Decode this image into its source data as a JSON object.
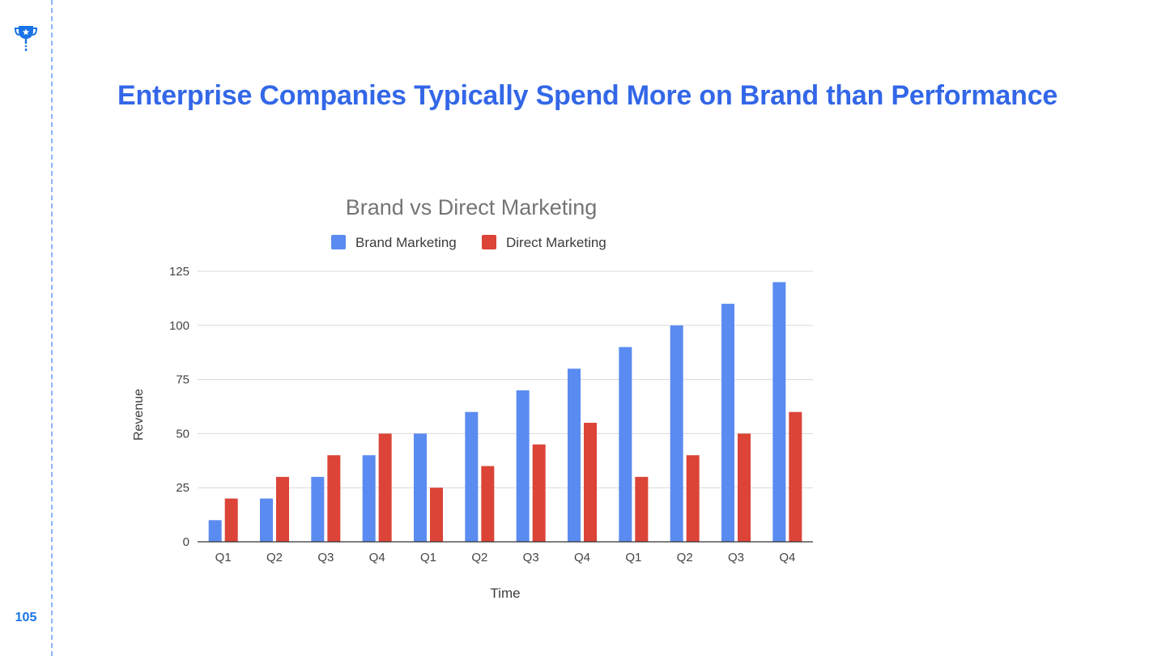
{
  "slide": {
    "title": "Enterprise Companies Typically Spend More on Brand than Performance",
    "page_number": "105"
  },
  "icons": {
    "corner": "trophy-icon"
  },
  "colors": {
    "accent": "#3367e8",
    "brand": "#5a8bf0",
    "direct": "#db4437",
    "grid": "#d9d9d9"
  },
  "chart_data": {
    "type": "bar",
    "title": "Brand vs Direct Marketing",
    "xlabel": "Time",
    "ylabel": "Revenue",
    "categories": [
      "Q1",
      "Q2",
      "Q3",
      "Q4",
      "Q1",
      "Q2",
      "Q3",
      "Q4",
      "Q1",
      "Q2",
      "Q3",
      "Q4"
    ],
    "series": [
      {
        "name": "Brand Marketing",
        "color": "#5a8bf0",
        "values": [
          10,
          20,
          30,
          40,
          50,
          60,
          70,
          80,
          90,
          100,
          110,
          120
        ]
      },
      {
        "name": "Direct Marketing",
        "color": "#db4437",
        "values": [
          20,
          30,
          40,
          50,
          25,
          35,
          45,
          55,
          30,
          40,
          50,
          60
        ]
      }
    ],
    "ylim": [
      0,
      125
    ],
    "yticks": [
      0,
      25,
      50,
      75,
      100,
      125
    ],
    "grid": true,
    "legend_position": "top"
  }
}
